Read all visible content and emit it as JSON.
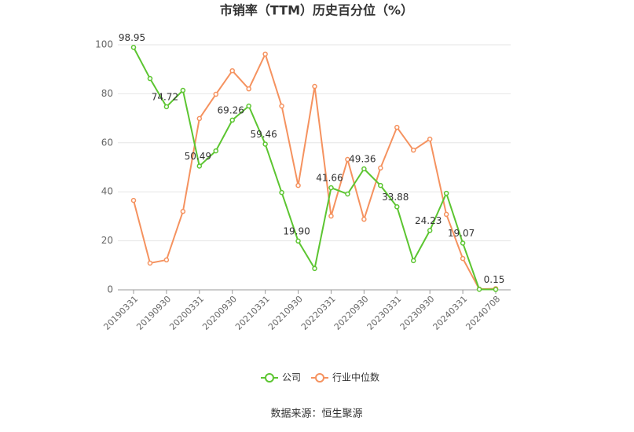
{
  "chart_data": {
    "type": "line",
    "title": "市销率（TTM）历史百分位（%）",
    "source": "数据来源：恒生聚源",
    "categories": [
      "20190331",
      null,
      "20190930",
      null,
      "20200331",
      null,
      "20200930",
      null,
      "20210331",
      null,
      "20210930",
      null,
      "20220331",
      null,
      "20220930",
      null,
      "20230331",
      null,
      "20230930",
      null,
      "20240331",
      null,
      "20240708"
    ],
    "series": [
      {
        "name": "公司",
        "color": "#5cc531",
        "values": [
          98.95,
          86.2,
          74.72,
          81.4,
          50.49,
          56.7,
          69.26,
          75,
          59.46,
          39.7,
          19.9,
          8.7,
          41.66,
          39.1,
          49.36,
          42.6,
          33.88,
          11.9,
          24.23,
          39.4,
          19.07,
          0.2,
          0.15
        ],
        "value_labels": [
          "98.95",
          null,
          "74.72",
          null,
          "50.49",
          null,
          "69.26",
          null,
          "59.46",
          null,
          "19.90",
          null,
          "41.66",
          null,
          "49.36",
          null,
          "33.88",
          null,
          "24.23",
          null,
          "19.07",
          null,
          "0.15"
        ]
      },
      {
        "name": "行业中位数",
        "color": "#f5925f",
        "values": [
          36.5,
          10.9,
          12.2,
          32,
          69.9,
          79.8,
          89.4,
          82,
          96.2,
          75,
          42.6,
          83,
          30.1,
          53.2,
          28.8,
          49.7,
          66.3,
          57,
          61.5,
          30.8,
          12.8,
          0.3,
          0.5
        ]
      }
    ],
    "ylim": [
      0,
      100
    ],
    "yticks": [
      0,
      20,
      40,
      60,
      80,
      100
    ],
    "grid": true,
    "legend": "bottom"
  }
}
